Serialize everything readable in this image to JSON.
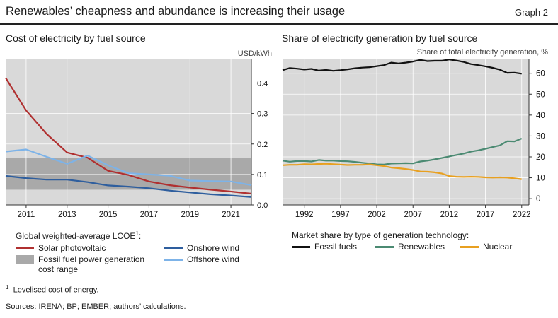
{
  "header": {
    "title": "Renewables’ cheapness and abundance is increasing their usage",
    "graph_label": "Graph 2"
  },
  "left_panel": {
    "title": "Cost of electricity by fuel source",
    "unit": "USD/kWh",
    "legend_title": "Global weighted-average LCOE",
    "legend_title_sup": "1",
    "legend_title_suffix": ":",
    "legend": {
      "solar": "Solar photovoltaic",
      "onshore": "Onshore wind",
      "fossil_range": "Fossil fuel power generation cost range",
      "offshore": "Offshore wind"
    }
  },
  "right_panel": {
    "title": "Share of electricity generation by fuel source",
    "unit": "Share of total electricity generation, %",
    "legend_title": "Market share by type of generation technology:",
    "legend": {
      "fossil": "Fossil fuels",
      "renewables": "Renewables",
      "nuclear": "Nuclear"
    }
  },
  "footnotes": {
    "note1_marker": "1",
    "note1": "Levelised cost of energy.",
    "sources": "Sources: IRENA; BP; EMBER; authors’ calculations."
  },
  "colors": {
    "solar": "#b03030",
    "onshore": "#2e5e9e",
    "offshore": "#7db3e8",
    "fossil_band": "#a9a9a9",
    "plot_bg": "#d9d9d9",
    "fossil": "#111111",
    "renewables": "#4b8a72",
    "nuclear": "#e8a020"
  },
  "chart_data": [
    {
      "type": "line",
      "title": "Cost of electricity by fuel source",
      "ylabel": "USD/kWh",
      "xlim": [
        2010,
        2022
      ],
      "ylim": [
        0,
        0.48
      ],
      "x_ticks": [
        2011,
        2013,
        2015,
        2017,
        2019,
        2021
      ],
      "x_tick_labels": [
        "2011",
        "2013",
        "2015",
        "2017",
        "2019",
        "2021"
      ],
      "y_ticks": [
        0.0,
        0.1,
        0.2,
        0.3,
        0.4
      ],
      "y_tick_labels": [
        "0.0",
        "0.1",
        "0.2",
        "0.3",
        "0.4"
      ],
      "x": [
        2010,
        2011,
        2012,
        2013,
        2014,
        2015,
        2016,
        2017,
        2018,
        2019,
        2020,
        2021,
        2022
      ],
      "bands": [
        {
          "name": "Fossil fuel power generation cost range",
          "ymin": 0.05,
          "ymax": 0.155
        }
      ],
      "series": [
        {
          "name": "Solar photovoltaic",
          "values": [
            0.417,
            0.31,
            0.233,
            0.172,
            0.155,
            0.112,
            0.098,
            0.077,
            0.065,
            0.057,
            0.05,
            0.044,
            0.037
          ]
        },
        {
          "name": "Onshore wind",
          "values": [
            0.095,
            0.088,
            0.083,
            0.083,
            0.075,
            0.064,
            0.06,
            0.055,
            0.047,
            0.041,
            0.035,
            0.031,
            0.026
          ]
        },
        {
          "name": "Offshore wind",
          "values": [
            0.175,
            0.182,
            0.158,
            0.135,
            0.162,
            0.13,
            0.104,
            0.1,
            0.096,
            0.08,
            0.078,
            0.077,
            0.065
          ]
        }
      ]
    },
    {
      "type": "line",
      "title": "Share of electricity generation by fuel source",
      "ylabel": "Share of total electricity generation, %",
      "xlim": [
        1989,
        2023
      ],
      "ylim": [
        -3,
        67
      ],
      "x_ticks": [
        1992,
        1997,
        2002,
        2007,
        2012,
        2017,
        2022
      ],
      "x_tick_labels": [
        "1992",
        "1997",
        "2002",
        "2007",
        "2012",
        "2017",
        "2022"
      ],
      "y_ticks": [
        0,
        10,
        20,
        30,
        40,
        50,
        60
      ],
      "y_tick_labels": [
        "0",
        "10",
        "20",
        "30",
        "40",
        "50",
        "60"
      ],
      "x": [
        1989,
        1990,
        1991,
        1992,
        1993,
        1994,
        1995,
        1996,
        1997,
        1998,
        1999,
        2000,
        2001,
        2002,
        2003,
        2004,
        2005,
        2006,
        2007,
        2008,
        2009,
        2010,
        2011,
        2012,
        2013,
        2014,
        2015,
        2016,
        2017,
        2018,
        2019,
        2020,
        2021,
        2022
      ],
      "series": [
        {
          "name": "Fossil fuels",
          "values": [
            61.5,
            62.5,
            62.2,
            61.8,
            62.1,
            61.3,
            61.6,
            61.2,
            61.5,
            61.9,
            62.4,
            62.7,
            62.9,
            63.4,
            63.9,
            65.1,
            64.7,
            65.1,
            65.6,
            66.4,
            65.8,
            66.0,
            66.0,
            66.6,
            66.1,
            65.4,
            64.4,
            63.9,
            63.3,
            62.6,
            61.7,
            60.2,
            60.3,
            59.8
          ]
        },
        {
          "name": "Renewables",
          "values": [
            18.2,
            17.7,
            18.0,
            18.0,
            17.8,
            18.5,
            18.2,
            18.2,
            18.0,
            17.9,
            17.6,
            17.2,
            16.8,
            16.4,
            16.3,
            16.8,
            16.9,
            17.0,
            16.9,
            17.8,
            18.2,
            18.8,
            19.5,
            20.2,
            20.9,
            21.6,
            22.5,
            23.1,
            23.9,
            24.7,
            25.5,
            27.5,
            27.4,
            28.8
          ]
        },
        {
          "name": "Nuclear",
          "values": [
            16.0,
            16.2,
            16.2,
            16.5,
            16.4,
            16.6,
            16.7,
            16.5,
            16.3,
            16.1,
            16.2,
            16.2,
            16.4,
            16.0,
            15.6,
            14.9,
            14.6,
            14.2,
            13.7,
            13.0,
            12.9,
            12.6,
            12.0,
            10.8,
            10.5,
            10.4,
            10.5,
            10.4,
            10.2,
            10.1,
            10.2,
            10.1,
            9.7,
            9.3
          ]
        }
      ]
    }
  ]
}
